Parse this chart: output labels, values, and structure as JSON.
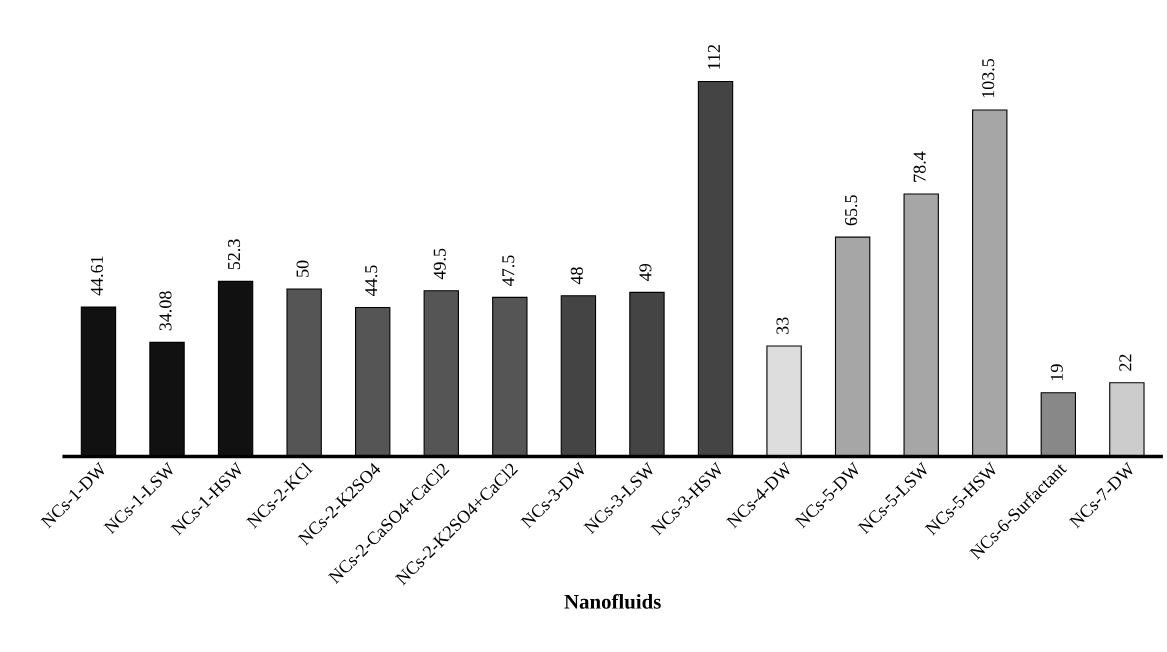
{
  "chart_data": {
    "type": "bar",
    "xlabel": "Nanofluids",
    "categories": [
      "NCs-1-DW",
      "NCs-1-LSW",
      "NCs-1-HSW",
      "NCs-2-KCl",
      "NCs-2-K2SO4",
      "NCs-2-CaSO4+CaCl2",
      "NCs-2-K2SO4+CaCl2",
      "NCs-3-DW",
      "NCs-3-LSW",
      "NCs-3-HSW",
      "NCs-4-DW",
      "NCs-5-DW",
      "NCs-5-LSW",
      "NCs-5-HSW",
      "NCs-6-Surfactant",
      "NCs-7-DW"
    ],
    "values": [
      44.61,
      34.08,
      52.3,
      50,
      44.5,
      49.5,
      47.5,
      48,
      49,
      112,
      33,
      65.5,
      78.4,
      103.5,
      19,
      22
    ],
    "colors": [
      "#111111",
      "#111111",
      "#111111",
      "#555555",
      "#555555",
      "#555555",
      "#555555",
      "#444444",
      "#444444",
      "#444444",
      "#dddddd",
      "#a6a6a6",
      "#a6a6a6",
      "#a6a6a6",
      "#888888",
      "#cccccc"
    ],
    "data_labels": true,
    "grid": false,
    "legend": false
  }
}
